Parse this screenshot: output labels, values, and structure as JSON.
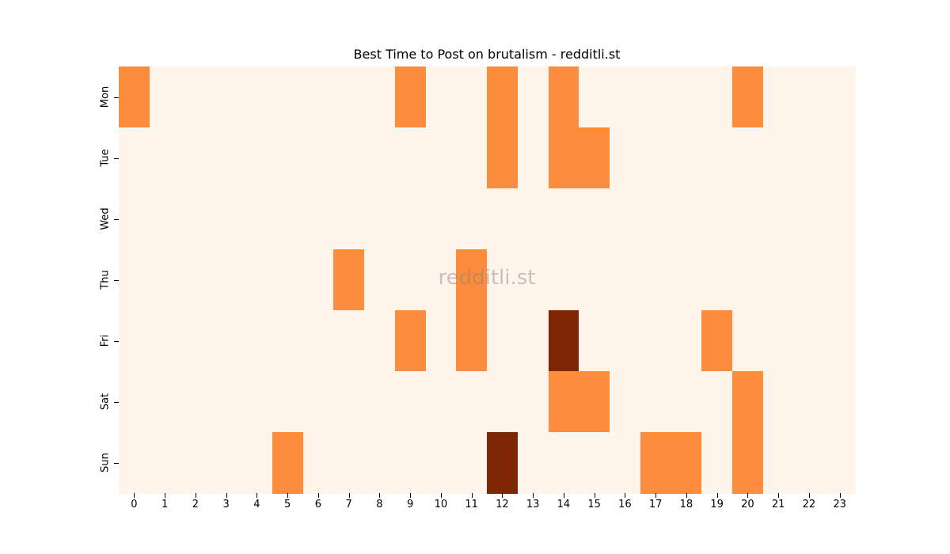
{
  "chart_data": {
    "type": "heatmap",
    "title": "Best Time to Post on brutalism - redditli.st",
    "xlabel": "",
    "ylabel": "",
    "x": [
      "0",
      "1",
      "2",
      "3",
      "4",
      "5",
      "6",
      "7",
      "8",
      "9",
      "10",
      "11",
      "12",
      "13",
      "14",
      "15",
      "16",
      "17",
      "18",
      "19",
      "20",
      "21",
      "22",
      "23"
    ],
    "y": [
      "Mon",
      "Tue",
      "Wed",
      "Thu",
      "Fri",
      "Sat",
      "Sun"
    ],
    "values": [
      [
        1,
        0,
        0,
        0,
        0,
        0,
        0,
        0,
        0,
        1,
        0,
        0,
        1,
        0,
        1,
        0,
        0,
        0,
        0,
        0,
        1,
        0,
        0,
        0
      ],
      [
        0,
        0,
        0,
        0,
        0,
        0,
        0,
        0,
        0,
        0,
        0,
        0,
        1,
        0,
        1,
        1,
        0,
        0,
        0,
        0,
        0,
        0,
        0,
        0
      ],
      [
        0,
        0,
        0,
        0,
        0,
        0,
        0,
        0,
        0,
        0,
        0,
        0,
        0,
        0,
        0,
        0,
        0,
        0,
        0,
        0,
        0,
        0,
        0,
        0
      ],
      [
        0,
        0,
        0,
        0,
        0,
        0,
        0,
        1,
        0,
        0,
        0,
        1,
        0,
        0,
        0,
        0,
        0,
        0,
        0,
        0,
        0,
        0,
        0,
        0
      ],
      [
        0,
        0,
        0,
        0,
        0,
        0,
        0,
        0,
        0,
        1,
        0,
        1,
        0,
        0,
        2,
        0,
        0,
        0,
        0,
        1,
        0,
        0,
        0,
        0
      ],
      [
        0,
        0,
        0,
        0,
        0,
        0,
        0,
        0,
        0,
        0,
        0,
        0,
        0,
        0,
        1,
        1,
        0,
        0,
        0,
        0,
        1,
        0,
        0,
        0
      ],
      [
        0,
        0,
        0,
        0,
        0,
        1,
        0,
        0,
        0,
        0,
        0,
        0,
        2,
        0,
        0,
        0,
        0,
        1,
        1,
        0,
        1,
        0,
        0,
        0
      ]
    ],
    "colormap": "Oranges",
    "colors": {
      "0": "#fff5eb",
      "1": "#fd8d3c",
      "2": "#7f2704"
    },
    "colorbar": false,
    "annotations": [
      "redditli.st"
    ]
  },
  "watermark": "redditli.st"
}
